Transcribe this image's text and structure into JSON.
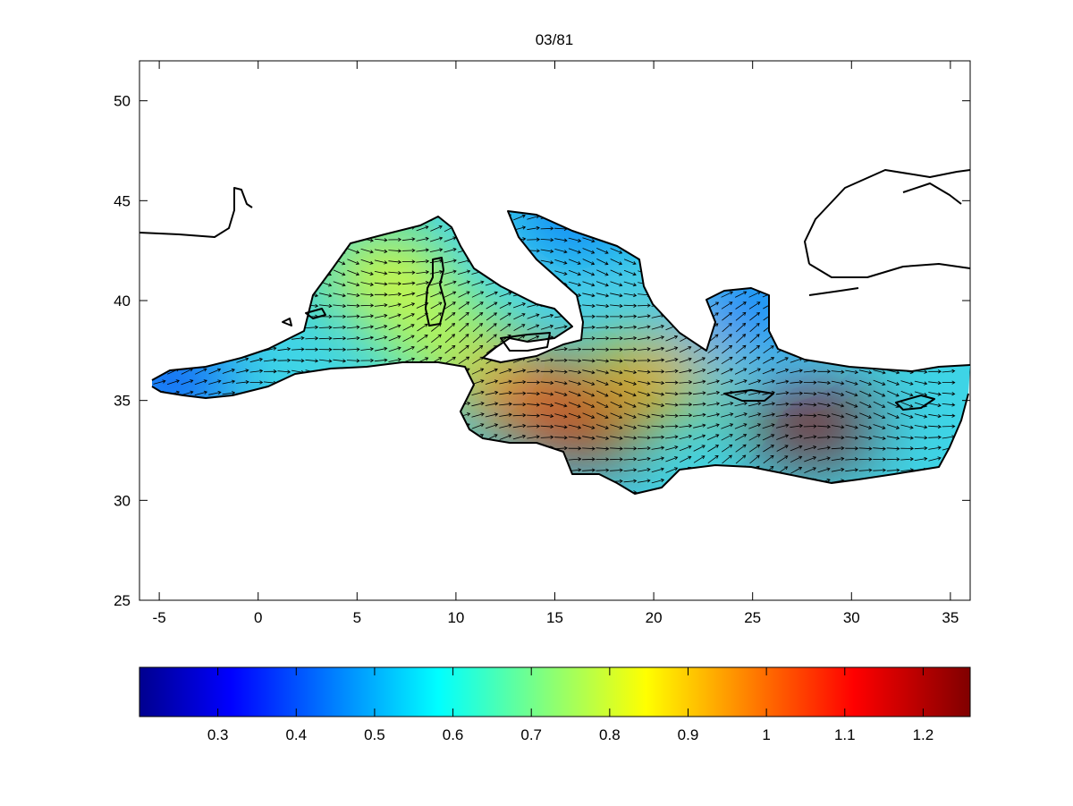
{
  "title": "03/81",
  "map": {
    "xlim": [
      -6,
      36
    ],
    "ylim": [
      25,
      52
    ],
    "x_ticks": [
      -5,
      0,
      5,
      10,
      15,
      20,
      25,
      30,
      35
    ],
    "y_ticks": [
      25,
      30,
      35,
      40,
      45,
      50
    ],
    "x_tick_labels": [
      "-5",
      "0",
      "5",
      "10",
      "15",
      "20",
      "25",
      "30",
      "35"
    ],
    "y_tick_labels": [
      "25",
      "30",
      "35",
      "40",
      "45",
      "50"
    ],
    "field_peaks": [
      {
        "lon": 16.5,
        "lat": 33.8,
        "value": 1.2
      },
      {
        "lon": 28.0,
        "lat": 33.8,
        "value": 1.25
      },
      {
        "lon": 13.0,
        "lat": 35.5,
        "value": 1.05
      },
      {
        "lon": 20.0,
        "lat": 36.3,
        "value": 0.95
      },
      {
        "lon": 6.5,
        "lat": 41.3,
        "value": 0.85
      },
      {
        "lon": 9.5,
        "lat": 38.0,
        "value": 0.8
      },
      {
        "lon": 16.0,
        "lat": 44.2,
        "value": 0.45
      },
      {
        "lon": -4.5,
        "lat": 36.0,
        "value": 0.4
      },
      {
        "lon": 25.0,
        "lat": 39.8,
        "value": 0.45
      }
    ]
  },
  "colorbar": {
    "colormap": "jet",
    "vmin": 0.2,
    "vmax": 1.26,
    "ticks": [
      0.3,
      0.4,
      0.5,
      0.6,
      0.7,
      0.8,
      0.9,
      1,
      1.1,
      1.2
    ],
    "tick_labels": [
      "0.3",
      "0.4",
      "0.5",
      "0.6",
      "0.7",
      "0.8",
      "0.9",
      "1",
      "1.1",
      "1.2"
    ]
  }
}
